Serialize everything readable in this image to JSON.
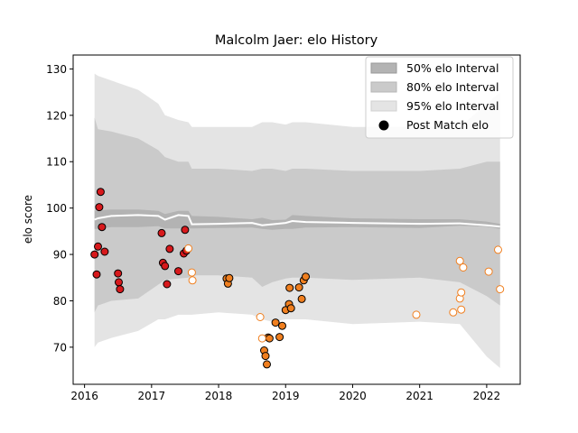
{
  "chart_data": {
    "type": "scatter",
    "title": "Malcolm Jaer: elo History",
    "xlabel": "",
    "ylabel": "elo score",
    "xlim": [
      2015.83,
      2022.5
    ],
    "ylim": [
      62,
      133
    ],
    "x_ticks": [
      2016,
      2017,
      2018,
      2019,
      2020,
      2021,
      2022
    ],
    "y_ticks": [
      70,
      80,
      90,
      100,
      110,
      120,
      130
    ],
    "grid": false,
    "legend": {
      "placement": "top-right",
      "entries": [
        "50% elo Interval",
        "80% elo Interval",
        "95% elo Interval",
        "Post Match elo"
      ]
    },
    "colors": {
      "band95": "#e4e4e4",
      "band80": "#cacaca",
      "band50": "#b3b3b3",
      "median_line": "#ffffff",
      "red_points": "#d7191c",
      "orange_points": "#f07f1f",
      "hollow_stroke": "#f07f1f",
      "hollow_fill": "#ffffff"
    },
    "bands": {
      "x": [
        2016.15,
        2016.2,
        2016.4,
        2016.8,
        2017.1,
        2017.2,
        2017.4,
        2017.55,
        2017.6,
        2018.0,
        2018.5,
        2018.65,
        2018.8,
        2019.0,
        2019.1,
        2019.3,
        2020.0,
        2021.0,
        2021.6,
        2022.0,
        2022.2
      ],
      "median": [
        97.5,
        97.8,
        98.3,
        98.5,
        98.3,
        97.5,
        98.5,
        98.3,
        96.5,
        96.6,
        96.8,
        96.3,
        96.5,
        96.8,
        97.2,
        97.0,
        96.8,
        96.6,
        96.7,
        96.3,
        96.0
      ],
      "p50_lo": [
        95.5,
        95.5,
        95.9,
        95.9,
        96.1,
        95.6,
        95.6,
        95.6,
        95.6,
        95.7,
        95.8,
        95.5,
        95.3,
        95.5,
        95.5,
        95.8,
        95.9,
        95.7,
        96.2,
        96.0,
        95.5
      ],
      "p50_hi": [
        99.5,
        99.5,
        99.7,
        99.7,
        99.4,
        98.7,
        99.4,
        99.4,
        98.3,
        98.1,
        97.6,
        97.9,
        97.4,
        97.5,
        98.5,
        98.3,
        97.8,
        97.6,
        97.6,
        97.1,
        96.6
      ],
      "p80_lo": [
        77.5,
        79.0,
        80.0,
        80.5,
        83.5,
        84.5,
        84.8,
        85.0,
        85.5,
        85.5,
        85.0,
        83.0,
        84.0,
        84.8,
        85.0,
        85.0,
        84.5,
        85.0,
        84.0,
        81.0,
        79.0
      ],
      "p80_hi": [
        119.5,
        117.0,
        116.5,
        115.0,
        112.5,
        111.0,
        110.0,
        110.0,
        108.5,
        108.5,
        108.0,
        108.5,
        108.5,
        108.0,
        108.5,
        108.5,
        108.0,
        108.0,
        108.5,
        110.0,
        110.0
      ],
      "p95_lo": [
        70.0,
        71.0,
        72.0,
        73.5,
        76.0,
        76.0,
        77.0,
        77.0,
        77.0,
        77.5,
        77.0,
        76.0,
        75.5,
        76.0,
        76.0,
        76.0,
        75.0,
        75.5,
        75.0,
        68.0,
        65.5
      ],
      "p95_hi": [
        129.0,
        128.5,
        127.5,
        125.5,
        122.5,
        120.0,
        119.0,
        118.5,
        117.5,
        117.5,
        117.5,
        118.5,
        118.5,
        118.0,
        118.5,
        118.5,
        117.5,
        117.5,
        117.5,
        122.5,
        125.0
      ]
    },
    "series": [
      {
        "marker": "red",
        "x": [
          2016.15,
          2016.18,
          2016.2,
          2016.22,
          2016.24,
          2016.26,
          2016.3,
          2016.5,
          2016.51,
          2016.53,
          2017.15,
          2017.17,
          2017.2,
          2017.23,
          2017.27,
          2017.4,
          2017.48,
          2017.5,
          2017.52
        ],
        "y": [
          90.0,
          85.7,
          91.7,
          100.2,
          103.5,
          95.9,
          90.6,
          85.9,
          84.0,
          82.5,
          94.6,
          88.2,
          87.5,
          83.6,
          91.2,
          86.4,
          90.2,
          95.3,
          90.8
        ]
      },
      {
        "marker": "orange",
        "x": [
          2018.12,
          2018.14,
          2018.16,
          2018.68,
          2018.7,
          2018.72,
          2018.74,
          2018.76,
          2018.85,
          2018.91,
          2018.95,
          2019.0,
          2019.05,
          2019.06,
          2019.08,
          2019.2,
          2019.24,
          2019.27,
          2019.3
        ],
        "y": [
          84.8,
          83.7,
          84.9,
          69.3,
          68.1,
          66.3,
          72.1,
          71.9,
          75.3,
          72.2,
          74.6,
          78.0,
          79.3,
          82.8,
          78.4,
          82.9,
          80.4,
          84.4,
          85.2
        ]
      },
      {
        "marker": "hollow",
        "x": [
          2017.55,
          2017.6,
          2017.61,
          2018.62,
          2018.65,
          2020.95,
          2021.5,
          2021.6,
          2021.6,
          2021.62,
          2021.62,
          2021.65,
          2022.03,
          2022.17,
          2022.2
        ],
        "y": [
          91.3,
          86.1,
          84.4,
          76.5,
          71.9,
          77.0,
          77.5,
          88.6,
          80.5,
          81.8,
          78.1,
          87.2,
          86.3,
          91.0,
          82.5
        ]
      }
    ]
  }
}
